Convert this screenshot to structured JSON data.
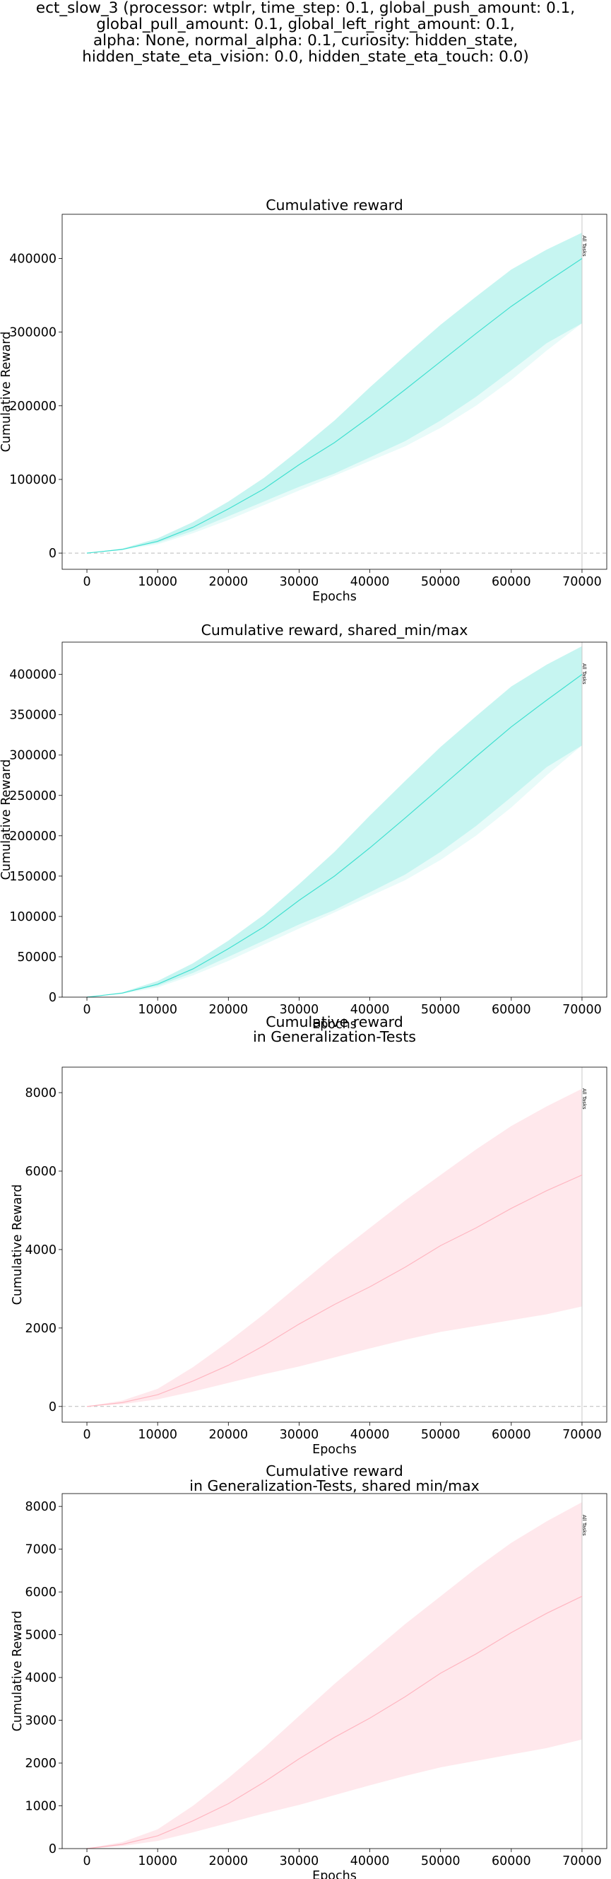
{
  "suptitle_lines": [
    "ect_slow_3 (processor: wtplr, time_step: 0.1, global_push_amount: 0.1,",
    "global_pull_amount: 0.1, global_left_right_amount: 0.1,",
    "alpha: None, normal_alpha: 0.1, curiosity: hidden_state,",
    "hidden_state_eta_vision: 0.0, hidden_state_eta_touch: 0.0)"
  ],
  "chart_data": [
    {
      "type": "line",
      "title": [
        "Cumulative reward"
      ],
      "xlabel": "Epochs",
      "ylabel": "Cumulative Reward",
      "xlim": [
        -3500,
        73500
      ],
      "ylim": [
        -22000,
        460000
      ],
      "xticks": [
        0,
        10000,
        20000,
        30000,
        40000,
        50000,
        60000,
        70000
      ],
      "yticks": [
        0,
        100000,
        200000,
        300000,
        400000
      ],
      "zero_line": true,
      "vline": {
        "x": 70000,
        "label": "All Tasks"
      },
      "color": "#40e0d0",
      "series": [
        {
          "x": [
            0,
            5000,
            10000,
            15000,
            20000,
            25000,
            30000,
            35000,
            40000,
            45000,
            50000,
            55000,
            60000,
            65000,
            70000
          ],
          "mean": [
            0,
            5000,
            16000,
            35000,
            60000,
            87000,
            120000,
            150000,
            185000,
            222000,
            260000,
            298000,
            335000,
            368000,
            400000
          ],
          "min": [
            0,
            4000,
            12000,
            27000,
            45000,
            65000,
            85000,
            105000,
            125000,
            145000,
            170000,
            200000,
            235000,
            275000,
            312000
          ],
          "max": [
            0,
            6000,
            20000,
            42000,
            70000,
            102000,
            140000,
            180000,
            225000,
            268000,
            310000,
            348000,
            385000,
            412000,
            435000
          ],
          "max_lower": [
            0,
            5000,
            14000,
            30000,
            50000,
            70000,
            90000,
            108000,
            130000,
            152000,
            180000,
            212000,
            248000,
            285000,
            312000
          ]
        }
      ]
    },
    {
      "type": "line",
      "title": [
        "Cumulative reward, shared_min/max"
      ],
      "xlabel": "Epochs",
      "ylabel": "Cumulative Reward",
      "xlim": [
        -3500,
        73500
      ],
      "ylim": [
        0,
        440000
      ],
      "xticks": [
        0,
        10000,
        20000,
        30000,
        40000,
        50000,
        60000,
        70000
      ],
      "yticks": [
        0,
        50000,
        100000,
        150000,
        200000,
        250000,
        300000,
        350000,
        400000
      ],
      "zero_line": false,
      "vline": {
        "x": 70000,
        "label": "All Tasks"
      },
      "color": "#40e0d0",
      "series": [
        {
          "x": [
            0,
            5000,
            10000,
            15000,
            20000,
            25000,
            30000,
            35000,
            40000,
            45000,
            50000,
            55000,
            60000,
            65000,
            70000
          ],
          "mean": [
            0,
            5000,
            16000,
            35000,
            60000,
            87000,
            120000,
            150000,
            185000,
            222000,
            260000,
            298000,
            335000,
            368000,
            400000
          ],
          "min": [
            0,
            4000,
            12000,
            27000,
            45000,
            65000,
            85000,
            105000,
            125000,
            145000,
            170000,
            200000,
            235000,
            275000,
            312000
          ],
          "max": [
            0,
            6000,
            20000,
            42000,
            70000,
            102000,
            140000,
            180000,
            225000,
            268000,
            310000,
            348000,
            385000,
            412000,
            435000
          ],
          "max_lower": [
            0,
            5000,
            14000,
            30000,
            50000,
            70000,
            90000,
            108000,
            130000,
            152000,
            180000,
            212000,
            248000,
            285000,
            312000
          ]
        }
      ]
    },
    {
      "type": "line",
      "title": [
        "Cumulative reward",
        "in Generalization-Tests"
      ],
      "xlabel": "Epochs",
      "ylabel": "Cumulative Reward",
      "xlim": [
        -3500,
        73500
      ],
      "ylim": [
        -400,
        8650
      ],
      "xticks": [
        0,
        10000,
        20000,
        30000,
        40000,
        50000,
        60000,
        70000
      ],
      "yticks": [
        0,
        2000,
        4000,
        6000,
        8000
      ],
      "zero_line": true,
      "vline": {
        "x": 70000,
        "label": "All Tasks"
      },
      "color": "#ffb6c1",
      "series": [
        {
          "x": [
            0,
            5000,
            10000,
            15000,
            20000,
            25000,
            30000,
            35000,
            40000,
            45000,
            50000,
            55000,
            60000,
            65000,
            70000
          ],
          "mean": [
            0,
            100,
            300,
            650,
            1050,
            1550,
            2100,
            2600,
            3050,
            3550,
            4100,
            4550,
            5050,
            5500,
            5900
          ],
          "min": [
            0,
            60,
            180,
            380,
            600,
            820,
            1020,
            1250,
            1480,
            1700,
            1900,
            2050,
            2200,
            2350,
            2550
          ],
          "max": [
            0,
            150,
            450,
            1000,
            1650,
            2350,
            3100,
            3850,
            4550,
            5250,
            5900,
            6550,
            7150,
            7650,
            8100
          ]
        }
      ]
    },
    {
      "type": "line",
      "title": [
        "Cumulative reward",
        "in Generalization-Tests, shared min/max"
      ],
      "xlabel": "Epochs",
      "ylabel": "Cumulative Reward",
      "xlim": [
        -3500,
        73500
      ],
      "ylim": [
        0,
        8300
      ],
      "xticks": [
        0,
        10000,
        20000,
        30000,
        40000,
        50000,
        60000,
        70000
      ],
      "yticks": [
        0,
        1000,
        2000,
        3000,
        4000,
        5000,
        6000,
        7000,
        8000
      ],
      "zero_line": false,
      "vline": {
        "x": 70000,
        "label": "All Tasks"
      },
      "color": "#ffb6c1",
      "series": [
        {
          "x": [
            0,
            5000,
            10000,
            15000,
            20000,
            25000,
            30000,
            35000,
            40000,
            45000,
            50000,
            55000,
            60000,
            65000,
            70000
          ],
          "mean": [
            0,
            100,
            300,
            650,
            1050,
            1550,
            2100,
            2600,
            3050,
            3550,
            4100,
            4550,
            5050,
            5500,
            5900
          ],
          "min": [
            0,
            60,
            180,
            380,
            600,
            820,
            1020,
            1250,
            1480,
            1700,
            1900,
            2050,
            2200,
            2350,
            2550
          ],
          "max": [
            0,
            150,
            450,
            1000,
            1650,
            2350,
            3100,
            3850,
            4550,
            5250,
            5900,
            6550,
            7150,
            7650,
            8100
          ]
        }
      ]
    }
  ]
}
